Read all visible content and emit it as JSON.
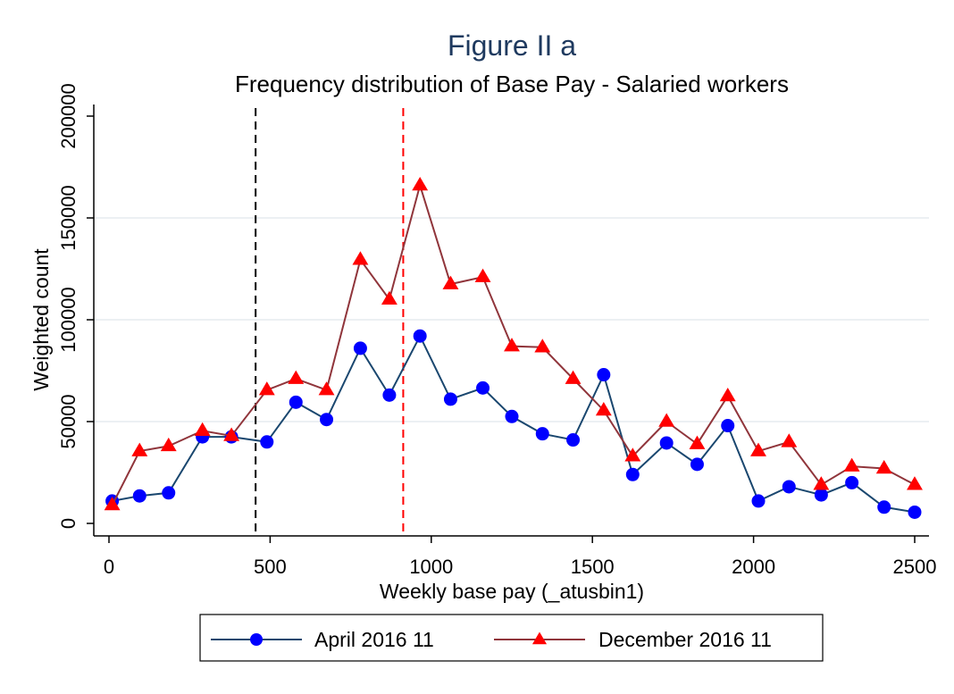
{
  "chart_data": {
    "type": "line",
    "title": "Figure II a",
    "subtitle": "Frequency distribution of Base Pay - Salaried workers",
    "xlabel": "Weekly base pay (_atusbin1)",
    "ylabel": "Weighted count",
    "xlim": [
      0,
      2500
    ],
    "ylim": [
      0,
      200000
    ],
    "xticks": [
      0,
      500,
      1000,
      1500,
      2000,
      2500
    ],
    "yticks": [
      0,
      50000,
      100000,
      150000,
      200000
    ],
    "x_tick_labels": [
      "0",
      "500",
      "1000",
      "1500",
      "2000",
      "2500"
    ],
    "y_tick_labels": [
      "0",
      "50000",
      "100000",
      "150000",
      "200000"
    ],
    "grid": "horizontal",
    "legend_position": "bottom",
    "reference_lines": [
      {
        "x": 455,
        "color": "#000000",
        "style": "dashed"
      },
      {
        "x": 913,
        "color": "#ff0000",
        "style": "dashed"
      }
    ],
    "x": [
      10,
      95,
      185,
      290,
      380,
      490,
      580,
      675,
      780,
      870,
      965,
      1060,
      1160,
      1250,
      1345,
      1440,
      1535,
      1625,
      1730,
      1825,
      1920,
      2015,
      2110,
      2210,
      2305,
      2405,
      2500
    ],
    "series": [
      {
        "name": "April 2016 11",
        "color": "#1a476f",
        "marker": "circle",
        "marker_color": "#0000ff",
        "values": [
          11000,
          13500,
          15000,
          42500,
          42500,
          40000,
          59500,
          51000,
          86000,
          63000,
          92000,
          61000,
          66500,
          52500,
          44000,
          41000,
          73000,
          24000,
          39500,
          29000,
          48000,
          11000,
          18000,
          14000,
          20000,
          8000,
          5500
        ]
      },
      {
        "name": "December 2016 11",
        "color": "#90353b",
        "marker": "triangle",
        "marker_color": "#ff0000",
        "values": [
          9000,
          35500,
          38000,
          45500,
          43000,
          65500,
          71000,
          65500,
          129500,
          110000,
          166000,
          117500,
          121000,
          87000,
          86500,
          71000,
          55500,
          33000,
          50000,
          39000,
          62500,
          35500,
          40000,
          19000,
          28000,
          27000,
          19000
        ]
      }
    ]
  }
}
